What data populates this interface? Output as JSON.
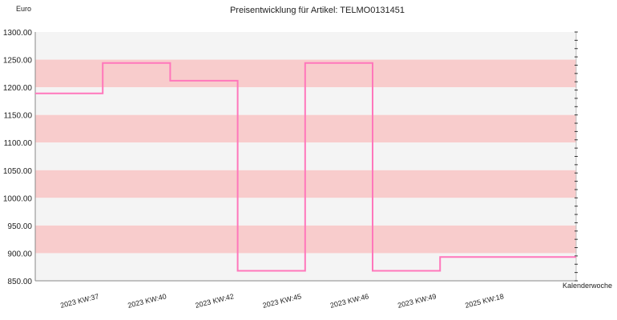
{
  "chart_data": {
    "type": "line",
    "title": "Preisentwicklung für Artikel: TELMO0131451",
    "ylabel": "Euro",
    "xlabel": "Kalenderwoche",
    "ylim": [
      850,
      1300
    ],
    "yticks": [
      "1300.00",
      "1250.00",
      "1200.00",
      "1150.00",
      "1100.00",
      "1050.00",
      "1000.00",
      "950.00",
      "900.00",
      "850.00"
    ],
    "categories": [
      "2023 KW:37",
      "2023 KW:40",
      "2023 KW:42",
      "2023 KW:45",
      "2023 KW:46",
      "2023 KW:49",
      "2025 KW:18"
    ],
    "step": true,
    "series": [
      {
        "values": [
          1189,
          1244,
          1212,
          868,
          1244,
          868,
          893
        ]
      }
    ],
    "colors": {
      "line": "#ff77bb",
      "band_dark": "#f8cccc",
      "band_light": "#f4f4f4",
      "axis": "#888888"
    },
    "grid": false
  }
}
